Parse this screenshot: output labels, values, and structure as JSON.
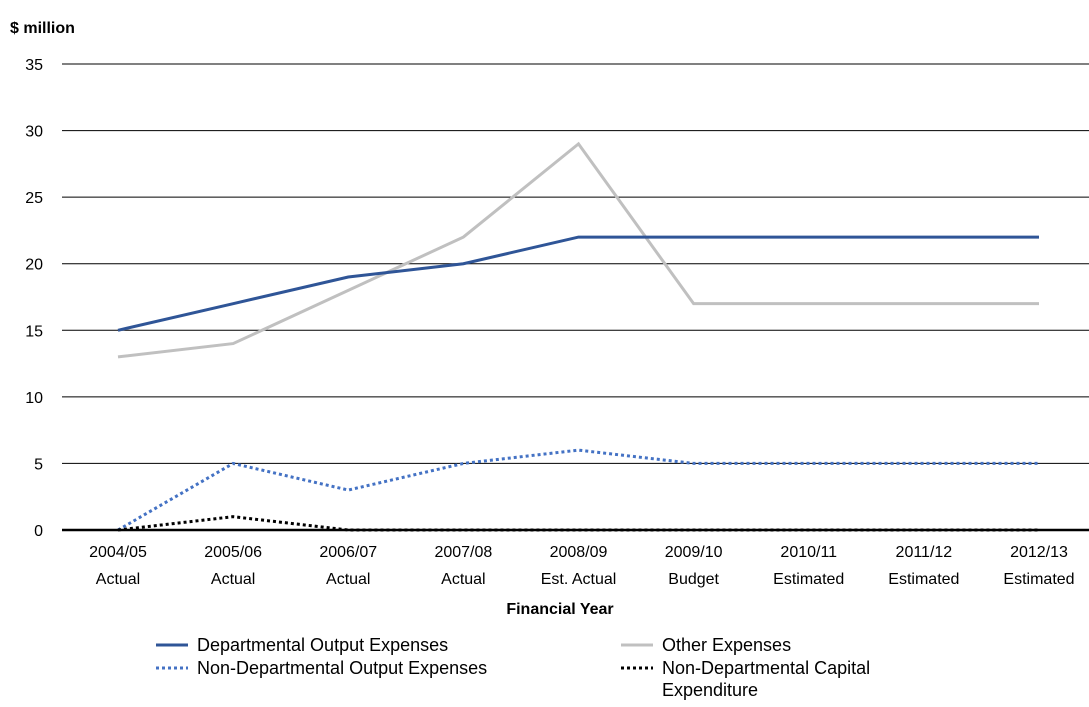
{
  "chart_data": {
    "type": "line",
    "title": "",
    "ylabel": "$ million",
    "xlabel": "Financial Year",
    "ylim": [
      0,
      35
    ],
    "yticks": [
      0,
      5,
      10,
      15,
      20,
      25,
      30,
      35
    ],
    "grid": "horizontal",
    "legend_position": "bottom",
    "categories": [
      {
        "line1": "2004/05",
        "line2": "Actual"
      },
      {
        "line1": "2005/06",
        "line2": "Actual"
      },
      {
        "line1": "2006/07",
        "line2": "Actual"
      },
      {
        "line1": "2007/08",
        "line2": "Actual"
      },
      {
        "line1": "2008/09",
        "line2": "Est. Actual"
      },
      {
        "line1": "2009/10",
        "line2": "Budget"
      },
      {
        "line1": "2010/11",
        "line2": "Estimated"
      },
      {
        "line1": "2011/12",
        "line2": "Estimated"
      },
      {
        "line1": "2012/13",
        "line2": "Estimated"
      }
    ],
    "series": [
      {
        "name": "Departmental Output Expenses",
        "color": "#2f5597",
        "style": "solid",
        "values": [
          15,
          17,
          19,
          20,
          22,
          22,
          22,
          22,
          22
        ]
      },
      {
        "name": "Other Expenses",
        "color": "#c0c0c0",
        "style": "solid",
        "values": [
          13,
          14,
          18,
          22,
          29,
          17,
          17,
          17,
          17
        ]
      },
      {
        "name": "Non-Departmental Output Expenses",
        "color": "#4472c4",
        "style": "dotted",
        "values": [
          0,
          5,
          3,
          5,
          6,
          5,
          5,
          5,
          5
        ]
      },
      {
        "name": "Non-Departmental Capital Expenditure",
        "color": "#000000",
        "style": "dotted",
        "values": [
          0,
          1,
          0,
          0,
          0,
          0,
          0,
          0,
          0
        ]
      }
    ],
    "legend": [
      {
        "series": 0,
        "lines": [
          "Departmental Output Expenses"
        ]
      },
      {
        "series": 1,
        "lines": [
          "Other Expenses"
        ]
      },
      {
        "series": 2,
        "lines": [
          "Non-Departmental Output Expenses"
        ]
      },
      {
        "series": 3,
        "lines": [
          "Non-Departmental Capital",
          "Expenditure"
        ]
      }
    ]
  }
}
